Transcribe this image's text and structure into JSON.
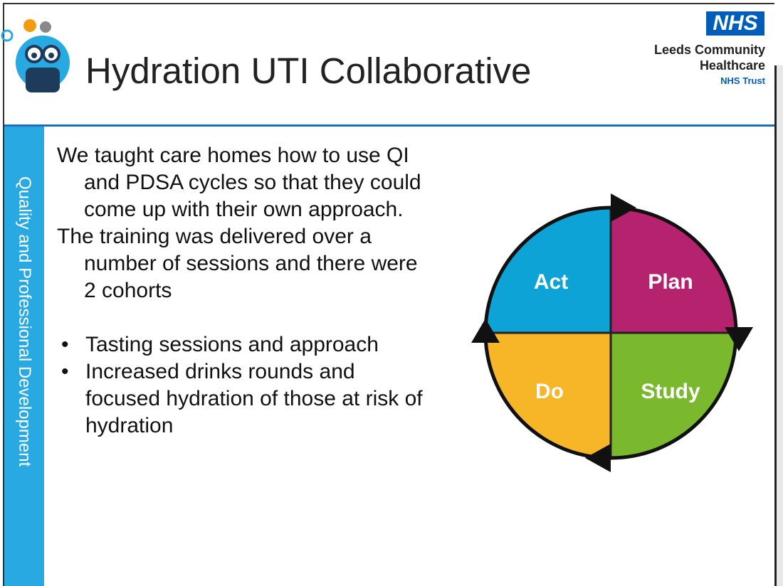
{
  "header": {
    "title": "Hydration UTI Collaborative",
    "logo": {
      "badge": "NHS",
      "org": [
        "Leeds Community",
        "Healthcare"
      ],
      "trust": "NHS Trust"
    }
  },
  "sidebar": "Quality and Professional Development",
  "paragraphs": [
    "We taught care homes how to use QI and PDSA cycles so that they could come up with their own approach.",
    "The training was delivered over a number of sessions and there were 2 cohorts"
  ],
  "bullets": [
    "Tasting sessions and approach",
    "Increased drinks rounds and focused hydration of those at risk of hydration"
  ],
  "cycle": {
    "labels": [
      "Act",
      "Plan",
      "Do",
      "Study"
    ]
  }
}
